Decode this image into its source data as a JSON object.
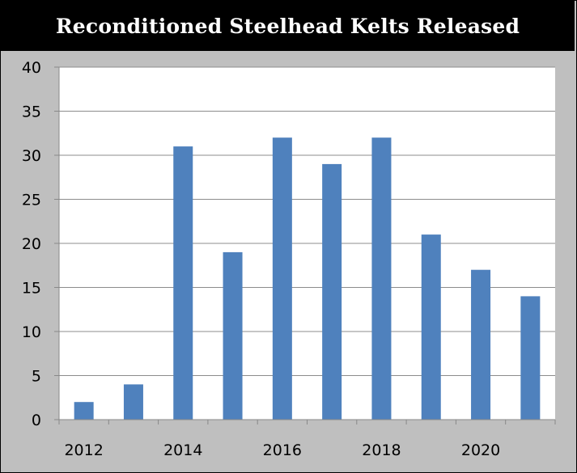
{
  "chart_data": {
    "type": "bar",
    "title": "Reconditioned Steelhead Kelts Released",
    "categories": [
      "2012",
      "2013",
      "2014",
      "2015",
      "2016",
      "2017",
      "2018",
      "2019",
      "2020",
      "2021"
    ],
    "x_tick_labels": [
      "2012",
      "2014",
      "2016",
      "2018",
      "2020"
    ],
    "values": [
      2,
      4,
      31,
      19,
      32,
      29,
      32,
      21,
      17,
      14
    ],
    "ylim": [
      0,
      40
    ],
    "y_ticks": [
      0,
      5,
      10,
      15,
      20,
      25,
      30,
      35,
      40
    ],
    "xlabel": "",
    "ylabel": "",
    "grid": true,
    "legend": "none",
    "colors": {
      "bar": "#4f81bd",
      "plot_background": "#ffffff",
      "chart_background": "#bfbfbf",
      "title_background": "#000000",
      "title_text": "#ffffff",
      "grid": "#8c8c8c"
    }
  }
}
